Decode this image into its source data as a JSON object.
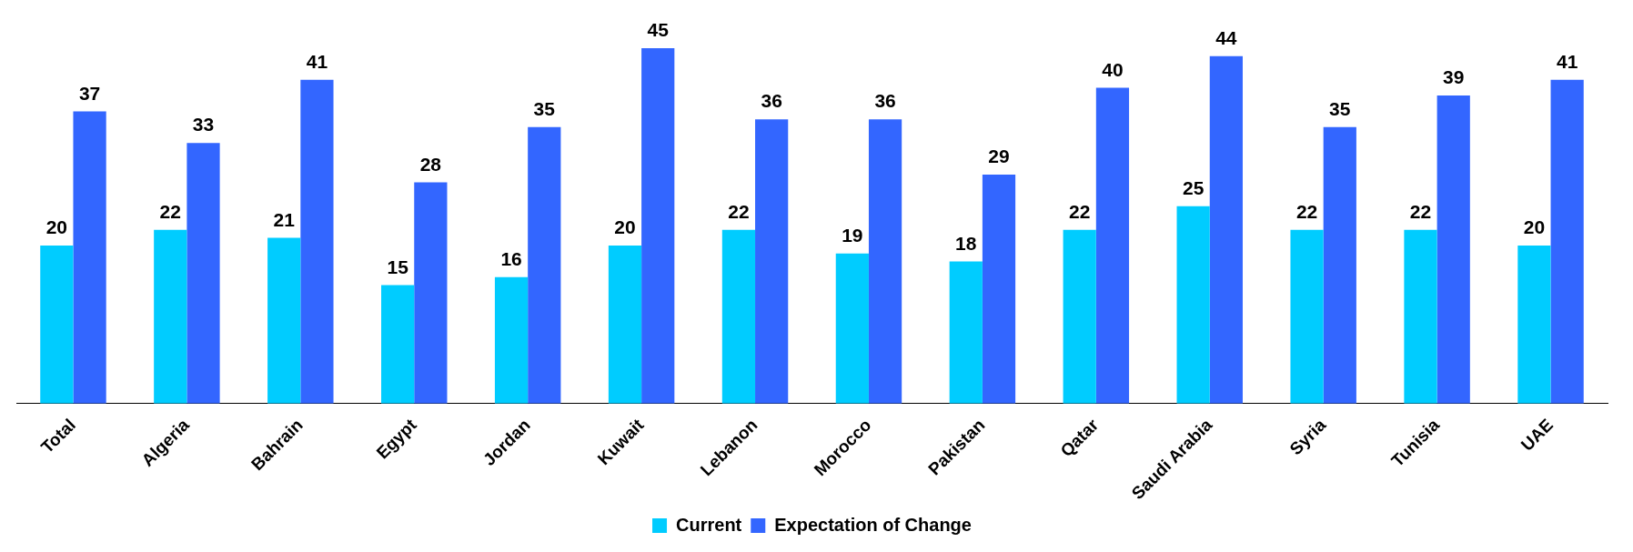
{
  "chart_data": {
    "type": "bar",
    "categories": [
      "Total",
      "Algeria",
      "Bahrain",
      "Egypt",
      "Jordan",
      "Kuwait",
      "Lebanon",
      "Morocco",
      "Pakistan",
      "Qatar",
      "Saudi Arabia",
      "Syria",
      "Tunisia",
      "UAE"
    ],
    "series": [
      {
        "name": "Current",
        "color": "#00ccff",
        "values": [
          20,
          22,
          21,
          15,
          16,
          20,
          22,
          19,
          18,
          22,
          25,
          22,
          22,
          20
        ]
      },
      {
        "name": "Expectation of Change",
        "color": "#3366ff",
        "values": [
          37,
          33,
          41,
          28,
          35,
          45,
          36,
          36,
          29,
          40,
          44,
          35,
          39,
          41
        ]
      }
    ],
    "data_labels": true,
    "legend": "bottom",
    "grid": false,
    "tick_labels": "x"
  }
}
